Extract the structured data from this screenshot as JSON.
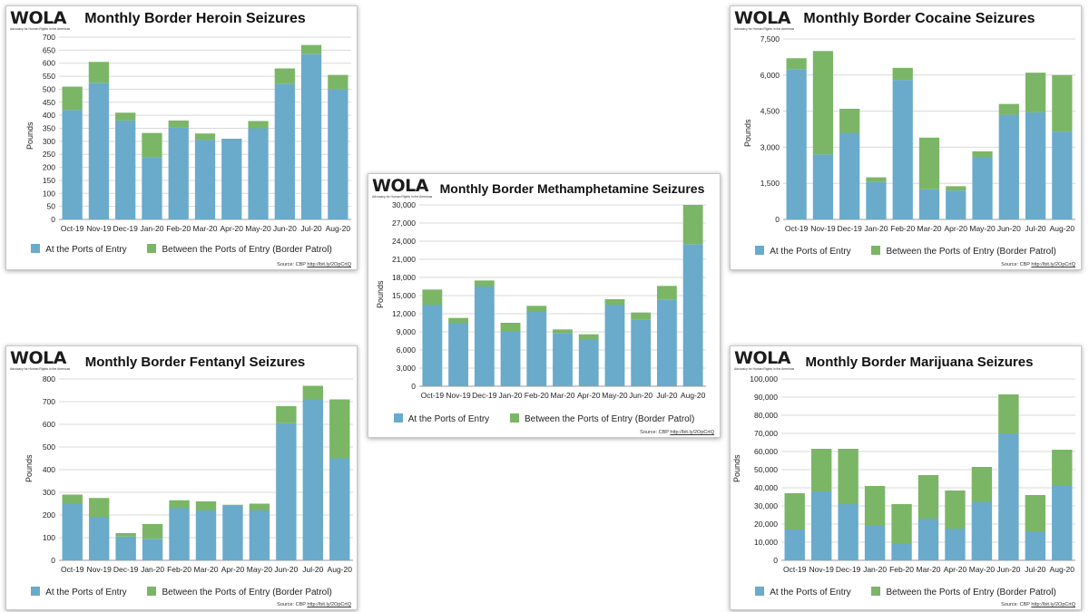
{
  "colors": {
    "ports": "#6aaacb",
    "between": "#7bb666",
    "grid": "#d9d9d9"
  },
  "logo": {
    "word": "WOLA",
    "tagline": "Advocacy for Human Rights in the Americas"
  },
  "ylabel": "Pounds",
  "source_prefix": "Source: CBP",
  "source_link": "http://bit.ly/2OpCrtQ",
  "legend": {
    "ports": "At the Ports of Entry",
    "between": "Between the Ports of Entry (Border Patrol)"
  },
  "chart_data": [
    {
      "id": "heroin",
      "type": "bar",
      "stacked": true,
      "title": "Monthly Border Heroin Seizures",
      "categories": [
        "Oct-19",
        "Nov-19",
        "Dec-19",
        "Jan-20",
        "Feb-20",
        "Mar-20",
        "Apr-20",
        "May-20",
        "Jun-20",
        "Jul-20",
        "Aug-20"
      ],
      "series": [
        {
          "name": "At the Ports of Entry",
          "values": [
            420,
            525,
            380,
            240,
            355,
            305,
            310,
            350,
            520,
            635,
            500
          ]
        },
        {
          "name": "Between the Ports of Entry (Border Patrol)",
          "values": [
            90,
            80,
            30,
            92,
            25,
            25,
            0,
            28,
            60,
            35,
            55
          ]
        }
      ],
      "ylim": [
        0,
        700
      ],
      "yticks": [
        0,
        50,
        100,
        150,
        200,
        250,
        300,
        350,
        400,
        450,
        500,
        550,
        600,
        650,
        700
      ],
      "ytick_labels": [
        "0",
        "50",
        "100",
        "150",
        "200",
        "250",
        "300",
        "350",
        "400",
        "450",
        "500",
        "550",
        "600",
        "650",
        "700"
      ]
    },
    {
      "id": "cocaine",
      "type": "bar",
      "stacked": true,
      "title": "Monthly Border Cocaine Seizures",
      "categories": [
        "Oct-19",
        "Nov-19",
        "Dec-19",
        "Jan-20",
        "Feb-20",
        "Mar-20",
        "Apr-20",
        "May-20",
        "Jun-20",
        "Jul-20",
        "Aug-20"
      ],
      "series": [
        {
          "name": "At the Ports of Entry",
          "values": [
            6250,
            2700,
            3600,
            1550,
            5800,
            1250,
            1200,
            2600,
            4350,
            4450,
            3650
          ]
        },
        {
          "name": "Between the Ports of Entry (Border Patrol)",
          "values": [
            450,
            4300,
            1000,
            200,
            500,
            2150,
            180,
            230,
            450,
            1650,
            2350
          ]
        }
      ],
      "ylim": [
        0,
        7500
      ],
      "yticks": [
        0,
        1500,
        3000,
        4500,
        6000,
        7500
      ],
      "ytick_labels": [
        "0",
        "1,500",
        "3,000",
        "4,500",
        "6,000",
        "7,500"
      ]
    },
    {
      "id": "meth",
      "type": "bar",
      "stacked": true,
      "title": "Monthly Border Methamphetamine Seizures",
      "categories": [
        "Oct-19",
        "Nov-19",
        "Dec-19",
        "Jan-20",
        "Feb-20",
        "Mar-20",
        "Apr-20",
        "May-20",
        "Jun-20",
        "Jul-20",
        "Aug-20"
      ],
      "series": [
        {
          "name": "At the Ports of Entry",
          "values": [
            13500,
            10500,
            16500,
            9000,
            12300,
            8800,
            7800,
            13500,
            11000,
            14300,
            23500
          ]
        },
        {
          "name": "Between the Ports of Entry (Border Patrol)",
          "values": [
            2500,
            800,
            1000,
            1500,
            1000,
            600,
            800,
            900,
            1200,
            2300,
            6500
          ]
        }
      ],
      "ylim": [
        0,
        30000
      ],
      "yticks": [
        0,
        3000,
        6000,
        9000,
        12000,
        15000,
        18000,
        21000,
        24000,
        27000,
        30000
      ],
      "ytick_labels": [
        "0",
        "3,000",
        "6,000",
        "9,000",
        "12,000",
        "15,000",
        "18,000",
        "21,000",
        "24,000",
        "27,000",
        "30,000"
      ]
    },
    {
      "id": "fentanyl",
      "type": "bar",
      "stacked": true,
      "title": "Monthly Border Fentanyl Seizures",
      "categories": [
        "Oct-19",
        "Nov-19",
        "Dec-19",
        "Jan-20",
        "Feb-20",
        "Mar-20",
        "Apr-20",
        "May-20",
        "Jun-20",
        "Jul-20",
        "Aug-20"
      ],
      "series": [
        {
          "name": "At the Ports of Entry",
          "values": [
            250,
            190,
            105,
            95,
            230,
            220,
            240,
            220,
            605,
            710,
            450
          ]
        },
        {
          "name": "Between the Ports of Entry (Border Patrol)",
          "values": [
            40,
            85,
            15,
            65,
            35,
            40,
            5,
            30,
            75,
            60,
            260
          ]
        }
      ],
      "ylim": [
        0,
        800
      ],
      "yticks": [
        0,
        100,
        200,
        300,
        400,
        500,
        600,
        700,
        800
      ],
      "ytick_labels": [
        "0",
        "100",
        "200",
        "300",
        "400",
        "500",
        "600",
        "700",
        "800"
      ]
    },
    {
      "id": "marijuana",
      "type": "bar",
      "stacked": true,
      "title": "Monthly Border Marijuana Seizures",
      "categories": [
        "Oct-19",
        "Nov-19",
        "Dec-19",
        "Jan-20",
        "Feb-20",
        "Mar-20",
        "Apr-20",
        "May-20",
        "Jun-20",
        "Jul-20",
        "Aug-20"
      ],
      "series": [
        {
          "name": "At the Ports of Entry",
          "values": [
            17000,
            38000,
            31000,
            19000,
            9000,
            23000,
            17500,
            32000,
            70000,
            16000,
            41000
          ]
        },
        {
          "name": "Between the Ports of Entry (Border Patrol)",
          "values": [
            20000,
            23500,
            30500,
            22000,
            22000,
            24000,
            21000,
            19500,
            21500,
            20000,
            20000
          ]
        }
      ],
      "ylim": [
        0,
        100000
      ],
      "yticks": [
        0,
        10000,
        20000,
        30000,
        40000,
        50000,
        60000,
        70000,
        80000,
        90000,
        100000
      ],
      "ytick_labels": [
        "0",
        "10,000",
        "20,000",
        "30,000",
        "40,000",
        "50,000",
        "60,000",
        "70,000",
        "80,000",
        "90,000",
        "100,000"
      ]
    }
  ]
}
